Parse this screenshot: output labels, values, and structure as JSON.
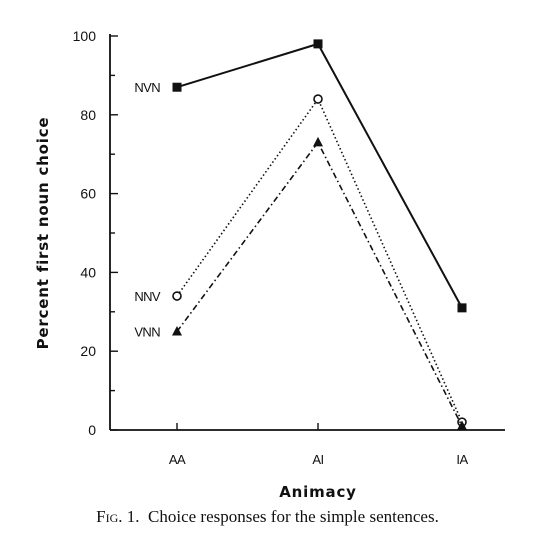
{
  "chart_data": {
    "type": "line",
    "categories": [
      "AA",
      "AI",
      "IA"
    ],
    "xlabel": "Animacy",
    "ylabel": "Percent first noun choice",
    "ylim": [
      0,
      100
    ],
    "yticks": [
      0,
      20,
      40,
      60,
      80,
      100
    ],
    "series": [
      {
        "name": "NVN",
        "values": [
          87,
          98,
          31
        ],
        "marker": "square-filled",
        "line": "solid"
      },
      {
        "name": "NNV",
        "values": [
          34,
          84,
          2
        ],
        "marker": "circle-open",
        "line": "dotted"
      },
      {
        "name": "VNN",
        "values": [
          25,
          73,
          1
        ],
        "marker": "triangle-filled",
        "line": "dashdot"
      }
    ]
  },
  "caption": {
    "figure_label": "Fig. 1.",
    "text": "Choice responses for the simple sentences."
  }
}
